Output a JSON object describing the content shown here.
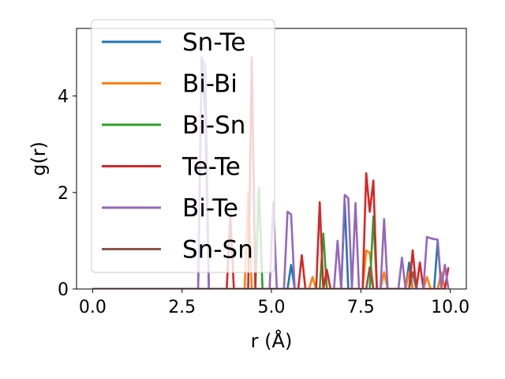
{
  "chart_data": {
    "type": "line",
    "xlabel": "r (Å)",
    "ylabel": "g(r)",
    "xlim": [
      -0.45,
      10.45
    ],
    "ylim": [
      0,
      5.4
    ],
    "xticks": [
      0.0,
      2.5,
      5.0,
      7.5,
      10.0
    ],
    "xtick_labels": [
      "0.0",
      "2.5",
      "5.0",
      "7.5",
      "10.0"
    ],
    "yticks": [
      0,
      2,
      4
    ],
    "ytick_labels": [
      "0",
      "2",
      "4"
    ],
    "grid": false,
    "legend_position": "upper-left",
    "series": [
      {
        "name": "Sn-Te",
        "color": "#1f77b4",
        "x": [
          0.0,
          2.95,
          3.05,
          3.15,
          3.25,
          5.45,
          5.55,
          5.65,
          6.95,
          7.05,
          7.15,
          7.85,
          8.75,
          8.85,
          8.95,
          9.55,
          9.65,
          9.75
        ],
        "y": [
          0,
          0,
          4.8,
          3.6,
          0,
          0,
          0.5,
          0,
          0,
          1.8,
          0,
          0,
          0,
          0.55,
          0,
          0,
          1.0,
          0
        ]
      },
      {
        "name": "Bi-Bi",
        "color": "#ff7f0e",
        "x": [
          0.0,
          4.25,
          4.35,
          4.45,
          6.05,
          6.15,
          6.25,
          7.55,
          7.65,
          7.75,
          7.85,
          8.05,
          8.15,
          8.25,
          8.75,
          8.85,
          8.95,
          9.25,
          9.35,
          9.45,
          9.65,
          9.75,
          9.85
        ],
        "y": [
          0,
          0,
          2.0,
          0,
          0,
          0.25,
          0,
          0,
          0.8,
          0.75,
          0,
          0,
          0.35,
          0,
          0,
          0.35,
          0,
          0,
          0.25,
          0,
          0,
          0.35,
          0
        ]
      },
      {
        "name": "Bi-Sn",
        "color": "#2ca02c",
        "x": [
          0.0,
          4.55,
          4.65,
          4.75,
          6.35,
          6.45,
          6.55,
          7.75,
          7.85,
          7.95
        ],
        "y": [
          0,
          0,
          2.1,
          0,
          0,
          1.15,
          0,
          0,
          1.5,
          0
        ]
      },
      {
        "name": "Te-Te",
        "color": "#d62728",
        "x": [
          0.0,
          3.75,
          3.85,
          3.95,
          4.35,
          4.45,
          4.55,
          5.75,
          5.85,
          5.95,
          6.25,
          6.35,
          6.45,
          6.55,
          6.65,
          7.55,
          7.65,
          7.75,
          7.85,
          7.95,
          8.05,
          8.85,
          8.95,
          9.05,
          9.15,
          9.25,
          9.85,
          9.95
        ],
        "y": [
          0,
          0,
          1.5,
          0,
          0,
          4.8,
          0,
          0,
          0.7,
          0,
          0,
          1.8,
          0,
          0.4,
          0,
          0,
          2.4,
          1.6,
          2.25,
          0,
          0,
          0,
          0.8,
          0,
          0.55,
          0,
          0,
          0.45
        ]
      },
      {
        "name": "Bi-Te",
        "color": "#9467bd",
        "x": [
          0.0,
          2.95,
          3.05,
          3.15,
          3.25,
          4.95,
          5.05,
          5.15,
          5.35,
          5.45,
          5.55,
          5.65,
          6.75,
          6.85,
          6.95,
          7.05,
          7.15,
          7.25,
          7.35,
          7.45,
          8.05,
          8.15,
          8.25,
          8.55,
          8.65,
          8.75,
          9.25,
          9.35,
          9.45,
          9.65,
          9.75,
          9.85,
          9.95
        ],
        "y": [
          0,
          0,
          4.8,
          4.6,
          0,
          0,
          1.8,
          0,
          0,
          1.6,
          1.55,
          0,
          0,
          1.0,
          0,
          1.95,
          1.88,
          0,
          1.78,
          0,
          0,
          1.45,
          0,
          0,
          0.65,
          0,
          0,
          1.08,
          1.05,
          1.02,
          0,
          0.5,
          0
        ]
      },
      {
        "name": "Sn-Sn",
        "color": "#8c564b",
        "x": [
          0.0,
          7.65,
          7.75,
          7.85,
          8.85,
          8.95,
          9.05
        ],
        "y": [
          0,
          0,
          0.45,
          0,
          0,
          0.35,
          0
        ]
      }
    ]
  }
}
